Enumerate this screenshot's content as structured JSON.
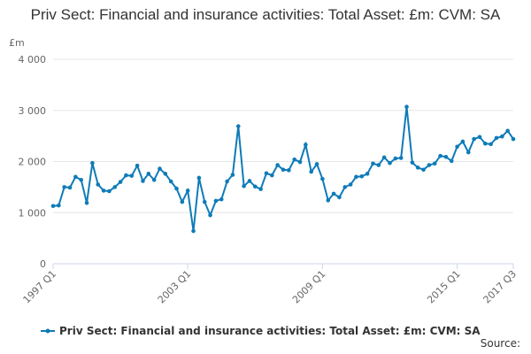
{
  "chart_data": {
    "type": "line",
    "title": "Priv Sect: Financial and insurance activities: Total Asset: £m: CVM: SA",
    "y_unit": "£m",
    "source": "Source:",
    "categories": [
      "1997 Q1",
      null,
      null,
      null,
      null,
      null,
      null,
      null,
      null,
      null,
      null,
      null,
      null,
      null,
      null,
      null,
      null,
      null,
      null,
      null,
      null,
      null,
      null,
      null,
      "2003 Q1",
      null,
      null,
      null,
      null,
      null,
      null,
      null,
      null,
      null,
      null,
      null,
      null,
      null,
      null,
      null,
      null,
      null,
      null,
      null,
      null,
      null,
      null,
      null,
      "2009 Q1",
      null,
      null,
      null,
      null,
      null,
      null,
      null,
      null,
      null,
      null,
      null,
      null,
      null,
      null,
      null,
      null,
      null,
      null,
      null,
      null,
      null,
      null,
      null,
      "2015 Q1",
      null,
      null,
      null,
      null,
      null,
      null,
      null,
      null,
      null,
      "2017 Q3"
    ],
    "series": [
      {
        "name": "Priv Sect: Financial and insurance activities: Total Asset: £m: CVM: SA",
        "color": "#0f7bb8",
        "values": [
          1130,
          1140,
          1500,
          1490,
          1700,
          1640,
          1190,
          1970,
          1550,
          1430,
          1420,
          1500,
          1600,
          1730,
          1720,
          1920,
          1620,
          1760,
          1640,
          1860,
          1760,
          1610,
          1470,
          1210,
          1430,
          640,
          1680,
          1210,
          950,
          1230,
          1260,
          1610,
          1740,
          2690,
          1520,
          1620,
          1510,
          1460,
          1770,
          1730,
          1930,
          1840,
          1830,
          2040,
          1990,
          2330,
          1800,
          1950,
          1660,
          1240,
          1370,
          1300,
          1500,
          1550,
          1700,
          1710,
          1760,
          1960,
          1930,
          2080,
          1970,
          2060,
          2070,
          3070,
          1980,
          1880,
          1840,
          1930,
          1960,
          2110,
          2090,
          2010,
          2290,
          2390,
          2180,
          2440,
          2480,
          2350,
          2340,
          2460,
          2490,
          2600,
          2440
        ]
      }
    ],
    "ylim": [
      0,
      4000
    ],
    "yticks": [
      0,
      {
        "value": 1000,
        "label": "1 000"
      },
      {
        "value": 2000,
        "label": "2 000"
      },
      {
        "value": 3000,
        "label": "3 000"
      },
      {
        "value": 4000,
        "label": "4 000"
      }
    ],
    "grid": true
  }
}
